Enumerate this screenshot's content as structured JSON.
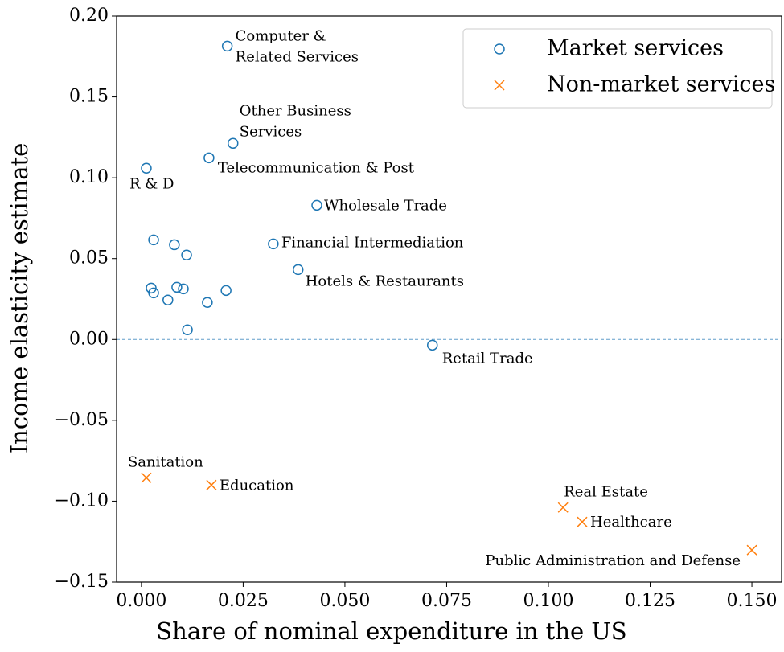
{
  "chart_data": {
    "type": "scatter",
    "xlabel": "Share of nominal expenditure in the US",
    "ylabel": "Income elasticity estimate",
    "xlim": [
      -0.0061,
      0.1573
    ],
    "ylim": [
      -0.15,
      0.2
    ],
    "xticks": [
      {
        "value": 0,
        "label": "0.000"
      },
      {
        "value": 0.025,
        "label": "0.025"
      },
      {
        "value": 0.05,
        "label": "0.050"
      },
      {
        "value": 0.075,
        "label": "0.075"
      },
      {
        "value": 0.1,
        "label": "0.100"
      },
      {
        "value": 0.125,
        "label": "0.125"
      },
      {
        "value": 0.15,
        "label": "0.150"
      }
    ],
    "yticks": [
      {
        "value": -0.15,
        "label": "−0.15"
      },
      {
        "value": -0.1,
        "label": "−0.10"
      },
      {
        "value": -0.05,
        "label": "−0.05"
      },
      {
        "value": 0,
        "label": "0.00"
      },
      {
        "value": 0.05,
        "label": "0.05"
      },
      {
        "value": 0.1,
        "label": "0.10"
      },
      {
        "value": 0.15,
        "label": "0.15"
      },
      {
        "value": 0.2,
        "label": "0.20"
      }
    ],
    "reference_line": 0,
    "legend": "upper right",
    "series": [
      {
        "name": "Market services",
        "color": "#1f77b4",
        "marker": "circle",
        "x": [
          0.0211,
          0.0225,
          0.0166,
          0.0012,
          0.0431,
          0.0324,
          0.0385,
          0.0715,
          0.003,
          0.0081,
          0.0111,
          0.0024,
          0.003,
          0.0065,
          0.0087,
          0.0103,
          0.0162,
          0.0208,
          0.0113
        ],
        "values": [
          0.1814,
          0.1213,
          0.1123,
          0.1059,
          0.083,
          0.0591,
          0.0432,
          -0.0035,
          0.0616,
          0.0586,
          0.0522,
          0.0318,
          0.0288,
          0.0244,
          0.0323,
          0.0313,
          0.0229,
          0.0303,
          0.006
        ],
        "labels": [
          "Computer &\nRelated Services",
          "Other Business\nServices",
          "Telecommunication & Post",
          "R & D",
          "Wholesale Trade",
          "Financial Intermediation",
          "Hotels & Restaurants",
          "Retail Trade",
          null,
          null,
          null,
          null,
          null,
          null,
          null,
          null,
          null,
          null,
          null
        ]
      },
      {
        "name": "Non-market services",
        "color": "#ff7f0e",
        "marker": "x",
        "x": [
          0.0012,
          0.0172,
          0.1036,
          0.1083,
          0.15
        ],
        "values": [
          -0.0855,
          -0.09,
          -0.1039,
          -0.1128,
          -0.1302
        ],
        "labels": [
          "Sanitation",
          "Education",
          "Real Estate",
          "Healthcare",
          "Public Administration and Defense"
        ]
      }
    ]
  }
}
